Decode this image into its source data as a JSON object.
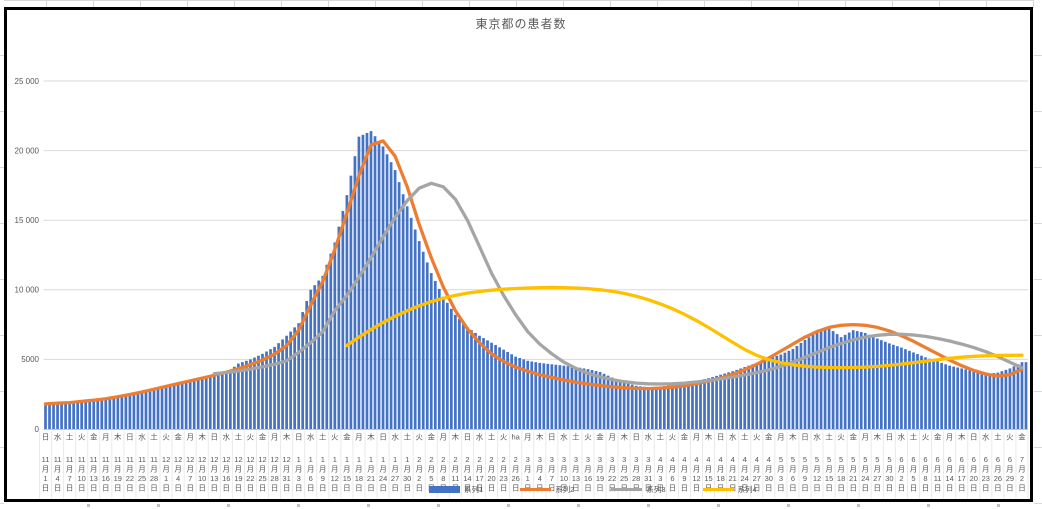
{
  "chart_data": {
    "type": "combo",
    "title": "東京都の患者数",
    "grid": true,
    "legend_position": "bottom-center-overlapping-axis",
    "ylim": [
      0,
      25000
    ],
    "y_axis": {
      "ticks": [
        {
          "value": 0,
          "label": "0"
        },
        {
          "value": 5000,
          "label": "5000"
        },
        {
          "value": 10000,
          "label": "10 000"
        },
        {
          "value": 15000,
          "label": "15 000"
        },
        {
          "value": 20000,
          "label": "20 000"
        },
        {
          "value": 25000,
          "label": "25 000"
        }
      ]
    },
    "x_axis_note": "daily bars; tick labels every 3 days, stacked vertically as weekday / M月 / D日",
    "tick_interval_days": 3,
    "ticks": [
      {
        "w": "日",
        "m": 11,
        "d": 1
      },
      {
        "w": "水",
        "m": 11,
        "d": 4
      },
      {
        "w": "土",
        "m": 11,
        "d": 7
      },
      {
        "w": "火",
        "m": 11,
        "d": 10
      },
      {
        "w": "金",
        "m": 11,
        "d": 13
      },
      {
        "w": "月",
        "m": 11,
        "d": 16
      },
      {
        "w": "木",
        "m": 11,
        "d": 19
      },
      {
        "w": "日",
        "m": 11,
        "d": 22
      },
      {
        "w": "水",
        "m": 11,
        "d": 25
      },
      {
        "w": "土",
        "m": 11,
        "d": 28
      },
      {
        "w": "火",
        "m": 12,
        "d": 1
      },
      {
        "w": "金",
        "m": 12,
        "d": 4
      },
      {
        "w": "月",
        "m": 12,
        "d": 7
      },
      {
        "w": "木",
        "m": 12,
        "d": 10
      },
      {
        "w": "日",
        "m": 12,
        "d": 13
      },
      {
        "w": "水",
        "m": 12,
        "d": 16
      },
      {
        "w": "土",
        "m": 12,
        "d": 19
      },
      {
        "w": "火",
        "m": 12,
        "d": 22
      },
      {
        "w": "金",
        "m": 12,
        "d": 25
      },
      {
        "w": "月",
        "m": 12,
        "d": 28
      },
      {
        "w": "木",
        "m": 12,
        "d": 31
      },
      {
        "w": "日",
        "m": 1,
        "d": 3
      },
      {
        "w": "水",
        "m": 1,
        "d": 6
      },
      {
        "w": "土",
        "m": 1,
        "d": 9
      },
      {
        "w": "火",
        "m": 1,
        "d": 12
      },
      {
        "w": "金",
        "m": 1,
        "d": 15
      },
      {
        "w": "月",
        "m": 1,
        "d": 18
      },
      {
        "w": "木",
        "m": 1,
        "d": 21
      },
      {
        "w": "日",
        "m": 1,
        "d": 24
      },
      {
        "w": "水",
        "m": 1,
        "d": 27
      },
      {
        "w": "土",
        "m": 1,
        "d": 30
      },
      {
        "w": "火",
        "m": 2,
        "d": 2
      },
      {
        "w": "金",
        "m": 2,
        "d": 5
      },
      {
        "w": "月",
        "m": 2,
        "d": 8
      },
      {
        "w": "木",
        "m": 2,
        "d": 11
      },
      {
        "w": "日",
        "m": 2,
        "d": 14
      },
      {
        "w": "水",
        "m": 2,
        "d": 17
      },
      {
        "w": "土",
        "m": 2,
        "d": 20
      },
      {
        "w": "火",
        "m": 2,
        "d": 23
      },
      {
        "w": "ha",
        "m": 2,
        "d": 26
      },
      {
        "w": "月",
        "m": 3,
        "d": 1
      },
      {
        "w": "木",
        "m": 3,
        "d": 4
      },
      {
        "w": "日",
        "m": 3,
        "d": 7
      },
      {
        "w": "水",
        "m": 3,
        "d": 10
      },
      {
        "w": "土",
        "m": 3,
        "d": 13
      },
      {
        "w": "火",
        "m": 3,
        "d": 16
      },
      {
        "w": "金",
        "m": 3,
        "d": 19
      },
      {
        "w": "月",
        "m": 3,
        "d": 22
      },
      {
        "w": "木",
        "m": 3,
        "d": 25
      },
      {
        "w": "日",
        "m": 3,
        "d": 28
      },
      {
        "w": "水",
        "m": 3,
        "d": 31
      },
      {
        "w": "土",
        "m": 4,
        "d": 3
      },
      {
        "w": "火",
        "m": 4,
        "d": 6
      },
      {
        "w": "金",
        "m": 4,
        "d": 9
      },
      {
        "w": "月",
        "m": 4,
        "d": 12
      },
      {
        "w": "木",
        "m": 4,
        "d": 15
      },
      {
        "w": "日",
        "m": 4,
        "d": 18
      },
      {
        "w": "水",
        "m": 4,
        "d": 21
      },
      {
        "w": "土",
        "m": 4,
        "d": 24
      },
      {
        "w": "火",
        "m": 4,
        "d": 27
      },
      {
        "w": "金",
        "m": 4,
        "d": 30
      },
      {
        "w": "月",
        "m": 5,
        "d": 3
      },
      {
        "w": "木",
        "m": 5,
        "d": 6
      },
      {
        "w": "日",
        "m": 5,
        "d": 9
      },
      {
        "w": "水",
        "m": 5,
        "d": 12
      },
      {
        "w": "土",
        "m": 5,
        "d": 15
      },
      {
        "w": "火",
        "m": 5,
        "d": 18
      },
      {
        "w": "金",
        "m": 5,
        "d": 21
      },
      {
        "w": "月",
        "m": 5,
        "d": 24
      },
      {
        "w": "木",
        "m": 5,
        "d": 27
      },
      {
        "w": "日",
        "m": 5,
        "d": 30
      },
      {
        "w": "水",
        "m": 6,
        "d": 2
      },
      {
        "w": "土",
        "m": 6,
        "d": 5
      },
      {
        "w": "火",
        "m": 6,
        "d": 8
      },
      {
        "w": "金",
        "m": 6,
        "d": 11
      },
      {
        "w": "月",
        "m": 6,
        "d": 14
      },
      {
        "w": "木",
        "m": 6,
        "d": 17
      },
      {
        "w": "日",
        "m": 6,
        "d": 20
      },
      {
        "w": "水",
        "m": 6,
        "d": 23
      },
      {
        "w": "土",
        "m": 6,
        "d": 26
      },
      {
        "w": "火",
        "m": 6,
        "d": 29
      },
      {
        "w": "金",
        "m": 7,
        "d": 2
      }
    ],
    "series": [
      {
        "name": "系列1",
        "type": "bar",
        "color": "#4472C4",
        "values": [
          1700,
          1760,
          1820,
          1900,
          2000,
          2150,
          2320,
          2500,
          2700,
          2900,
          3100,
          3300,
          3480,
          3650,
          3800,
          4000,
          4700,
          5000,
          5400,
          5900,
          6700,
          7600,
          10000,
          11000,
          13400,
          16800,
          21000,
          21400,
          20300,
          18600,
          16000,
          13500,
          11200,
          9500,
          8200,
          7300,
          6700,
          6200,
          5700,
          5200,
          4900,
          4750,
          4650,
          4550,
          4450,
          4300,
          4100,
          3700,
          3350,
          3100,
          3000,
          3050,
          3150,
          3300,
          3450,
          3650,
          3900,
          4150,
          4450,
          4750,
          5050,
          5350,
          5750,
          6400,
          6950,
          7250,
          6600,
          7100,
          6900,
          6500,
          6150,
          5850,
          5500,
          5150,
          4850,
          4550,
          4350,
          4150,
          3950,
          4050,
          4350,
          4800
        ]
      },
      {
        "name": "系列2",
        "type": "line",
        "color": "#ED7D31",
        "values": [
          1800,
          1850,
          1900,
          1980,
          2070,
          2180,
          2320,
          2480,
          2660,
          2860,
          3060,
          3260,
          3460,
          3660,
          3860,
          4080,
          4330,
          4620,
          4960,
          5380,
          6000,
          7100,
          8900,
          10600,
          12900,
          15500,
          18200,
          20400,
          20700,
          19600,
          17400,
          14700,
          12300,
          10200,
          8500,
          7200,
          6200,
          5400,
          4850,
          4450,
          4150,
          3900,
          3700,
          3520,
          3360,
          3230,
          3120,
          3030,
          2960,
          2920,
          2900,
          2930,
          3000,
          3110,
          3260,
          3440,
          3660,
          3930,
          4260,
          4650,
          5100,
          5600,
          6100,
          6600,
          7000,
          7300,
          7450,
          7500,
          7450,
          7300,
          7050,
          6700,
          6300,
          5850,
          5400,
          4950,
          4550,
          4200,
          3950,
          3800,
          3900,
          4300
        ]
      },
      {
        "name": "系列3",
        "type": "line",
        "color": "#A5A5A5",
        "values": [
          null,
          null,
          null,
          null,
          null,
          null,
          null,
          null,
          null,
          null,
          null,
          null,
          null,
          null,
          3980,
          4060,
          4170,
          4300,
          4460,
          4650,
          4900,
          5500,
          6200,
          7000,
          8500,
          9600,
          10900,
          12300,
          13800,
          15200,
          16400,
          17300,
          17650,
          17400,
          16500,
          15000,
          13100,
          11200,
          9600,
          8200,
          7000,
          6100,
          5400,
          4800,
          4350,
          4000,
          3750,
          3550,
          3400,
          3300,
          3250,
          3230,
          3250,
          3300,
          3380,
          3480,
          3600,
          3730,
          3880,
          4050,
          4250,
          4500,
          4800,
          5150,
          5500,
          5850,
          6150,
          6400,
          6600,
          6730,
          6800,
          6800,
          6750,
          6650,
          6500,
          6320,
          6100,
          5850,
          5550,
          5200,
          4800,
          4400
        ]
      },
      {
        "name": "系列4",
        "type": "line",
        "color": "#FFC000",
        "values": [
          null,
          null,
          null,
          null,
          null,
          null,
          null,
          null,
          null,
          null,
          null,
          null,
          null,
          null,
          null,
          null,
          null,
          null,
          null,
          null,
          null,
          null,
          null,
          null,
          null,
          6000,
          6600,
          7150,
          7650,
          8100,
          8500,
          8850,
          9150,
          9400,
          9600,
          9760,
          9880,
          9970,
          10040,
          10090,
          10130,
          10160,
          10170,
          10160,
          10130,
          10080,
          10000,
          9890,
          9740,
          9540,
          9290,
          8990,
          8640,
          8240,
          7790,
          7290,
          6760,
          6220,
          5710,
          5290,
          4980,
          4760,
          4610,
          4510,
          4450,
          4420,
          4410,
          4420,
          4450,
          4500,
          4570,
          4660,
          4760,
          4870,
          4980,
          5080,
          5160,
          5220,
          5260,
          5285,
          5295,
          5300
        ]
      }
    ]
  }
}
